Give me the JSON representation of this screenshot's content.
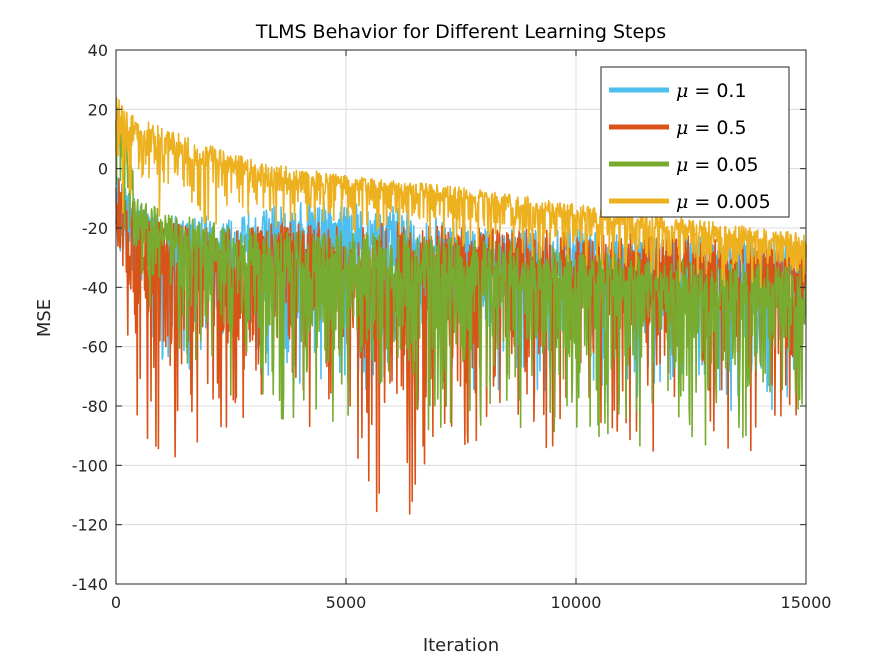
{
  "chart_data": {
    "type": "line",
    "title": "TLMS Behavior for Different Learning Steps",
    "xlabel": "Iteration",
    "ylabel": "MSE",
    "xlim": [
      0,
      15000
    ],
    "ylim": [
      -140,
      40
    ],
    "xticks": [
      0,
      5000,
      10000,
      15000
    ],
    "yticks": [
      -140,
      -120,
      -100,
      -80,
      -60,
      -40,
      -20,
      0,
      20,
      40
    ],
    "grid": true,
    "legend_position": "top-right",
    "series": [
      {
        "name": "μ = 0.1",
        "mu_symbol": "μ",
        "mu_value": "= 0.1",
        "color": "#4DBEEE",
        "x": [
          0,
          500,
          1000,
          2000,
          3000,
          4000,
          5000,
          6000,
          7000,
          8000,
          10000,
          12000,
          15000
        ],
        "y_upper": [
          -2,
          -12,
          -16,
          -16,
          -14,
          -11,
          -11,
          -12,
          -16,
          -20,
          -20,
          -22,
          -24
        ],
        "y_lower": [
          -30,
          -55,
          -65,
          -70,
          -72,
          -73,
          -75,
          -76,
          -78,
          -78,
          -80,
          -82,
          -82
        ]
      },
      {
        "name": "μ = 0.5",
        "mu_symbol": "μ",
        "mu_value": "= 0.5",
        "color": "#D95319",
        "x": [
          0,
          500,
          1000,
          2000,
          3000,
          4000,
          5000,
          6000,
          7000,
          8000,
          10000,
          12000,
          15000
        ],
        "y_upper": [
          0,
          -15,
          -18,
          -19,
          -19,
          -18,
          -18,
          -18,
          -19,
          -20,
          -21,
          -22,
          -24
        ],
        "y_lower": [
          -40,
          -88,
          -100,
          -90,
          -86,
          -88,
          -90,
          -130,
          -95,
          -92,
          -95,
          -96,
          -96
        ]
      },
      {
        "name": "μ = 0.05",
        "mu_symbol": "μ",
        "mu_value": "= 0.05",
        "color": "#77AC30",
        "x": [
          0,
          500,
          1000,
          2000,
          3000,
          4000,
          5000,
          6000,
          7000,
          8000,
          10000,
          12000,
          15000
        ],
        "y_upper": [
          27,
          -10,
          -14,
          -18,
          -20,
          -21,
          -21,
          -22,
          -23,
          -24,
          -27,
          -30,
          -33
        ],
        "y_lower": [
          -5,
          -52,
          -58,
          -72,
          -82,
          -86,
          -88,
          -88,
          -88,
          -88,
          -90,
          -95,
          -92
        ]
      },
      {
        "name": "μ = 0.005",
        "mu_symbol": "μ",
        "mu_value": "= 0.005",
        "color": "#EDB120",
        "x": [
          0,
          500,
          1000,
          2000,
          3000,
          4000,
          5000,
          6000,
          7000,
          8000,
          10000,
          12000,
          15000
        ],
        "y_upper": [
          25,
          17,
          14,
          8,
          3,
          0,
          -2,
          -4,
          -5,
          -7,
          -12,
          -16,
          -22
        ],
        "y_lower": [
          -15,
          -18,
          -20,
          -20,
          -20,
          -20,
          -22,
          -23,
          -25,
          -27,
          -33,
          -38,
          -42
        ]
      }
    ]
  }
}
